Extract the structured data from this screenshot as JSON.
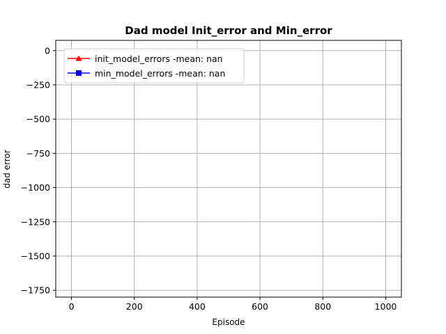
{
  "chart_data": {
    "type": "line",
    "title": "Dad model Init_error and Min_error",
    "xlabel": "Episode",
    "ylabel": "dad error",
    "xlim": [
      -50,
      1050
    ],
    "ylim": [
      -1800,
      75
    ],
    "xticks": [
      0,
      200,
      400,
      600,
      800,
      1000
    ],
    "yticks": [
      0,
      -250,
      -500,
      -750,
      -1000,
      -1250,
      -1500,
      -1750
    ],
    "xtick_labels": [
      "0",
      "200",
      "400",
      "600",
      "800",
      "1000"
    ],
    "ytick_labels": [
      "0",
      "−250",
      "−500",
      "−750",
      "−1000",
      "−1250",
      "−1500",
      "−1750"
    ],
    "grid": true,
    "legend_position": "upper-left",
    "series": [
      {
        "name": "init_model_errors -mean: nan",
        "color": "#ff0000",
        "marker": "triangle-up",
        "x": [],
        "y": []
      },
      {
        "name": "min_model_errors -mean: nan",
        "color": "#0000ff",
        "marker": "square",
        "x": [],
        "y": []
      }
    ]
  }
}
